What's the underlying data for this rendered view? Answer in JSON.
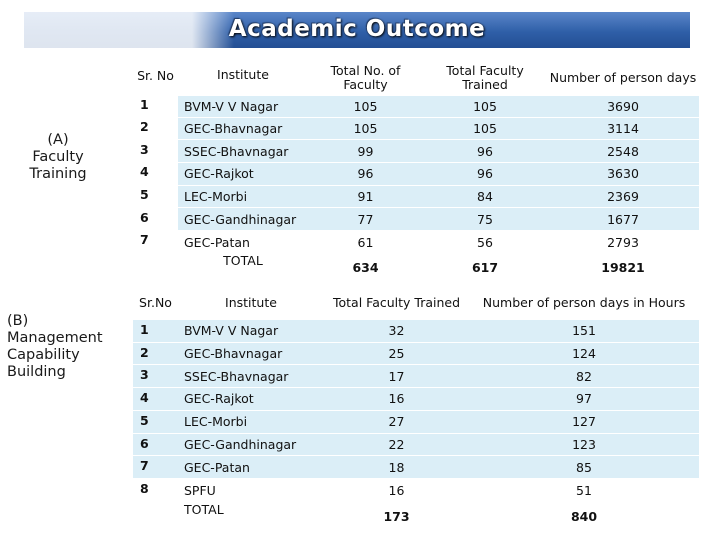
{
  "title": "Academic Outcome",
  "section_a": {
    "label": "(A)\nFaculty\nTraining",
    "headers": {
      "sr": "Sr. No",
      "institute": "Institute",
      "total_faculty": "Total No. of Faculty",
      "trained": "Total Faculty Trained",
      "person_days": "Number of person days"
    },
    "rows": [
      {
        "sr": "1",
        "institute": "BVM-V V Nagar",
        "total_faculty": "105",
        "trained": "105",
        "person_days": "3690"
      },
      {
        "sr": "2",
        "institute": "GEC-Bhavnagar",
        "total_faculty": "105",
        "trained": "105",
        "person_days": "3114"
      },
      {
        "sr": "3",
        "institute": "SSEC-Bhavnagar",
        "total_faculty": "99",
        "trained": "96",
        "person_days": "2548"
      },
      {
        "sr": "4",
        "institute": "GEC-Rajkot",
        "total_faculty": "96",
        "trained": "96",
        "person_days": "3630"
      },
      {
        "sr": "5",
        "institute": "LEC-Morbi",
        "total_faculty": "91",
        "trained": "84",
        "person_days": "2369"
      },
      {
        "sr": "6",
        "institute": "GEC-Gandhinagar",
        "total_faculty": "77",
        "trained": "75",
        "person_days": "1677"
      },
      {
        "sr": "7",
        "institute": "GEC-Patan",
        "total_faculty": "61",
        "trained": "56",
        "person_days": "2793"
      }
    ],
    "total": {
      "label": "TOTAL",
      "total_faculty": "634",
      "trained": "617",
      "person_days": "19821"
    }
  },
  "section_b": {
    "label": "(B)\nManagement\nCapability\nBuilding",
    "headers": {
      "sr": "Sr.No",
      "institute": "Institute",
      "trained": "Total Faculty Trained",
      "hours": "Number of person days in Hours"
    },
    "rows": [
      {
        "sr": "1",
        "institute": "BVM-V V Nagar",
        "trained": "32",
        "hours": "151"
      },
      {
        "sr": "2",
        "institute": "GEC-Bhavnagar",
        "trained": "25",
        "hours": "124"
      },
      {
        "sr": "3",
        "institute": "SSEC-Bhavnagar",
        "trained": "17",
        "hours": "82"
      },
      {
        "sr": "4",
        "institute": "GEC-Rajkot",
        "trained": "16",
        "hours": "97"
      },
      {
        "sr": "5",
        "institute": "LEC-Morbi",
        "trained": "27",
        "hours": "127"
      },
      {
        "sr": "6",
        "institute": "GEC-Gandhinagar",
        "trained": "22",
        "hours": "123"
      },
      {
        "sr": "7",
        "institute": "GEC-Patan",
        "trained": "18",
        "hours": "85"
      },
      {
        "sr": "8",
        "institute": "SPFU",
        "trained": "16",
        "hours": "51"
      }
    ],
    "total": {
      "label": "TOTAL",
      "trained": "173",
      "hours": "840"
    }
  }
}
